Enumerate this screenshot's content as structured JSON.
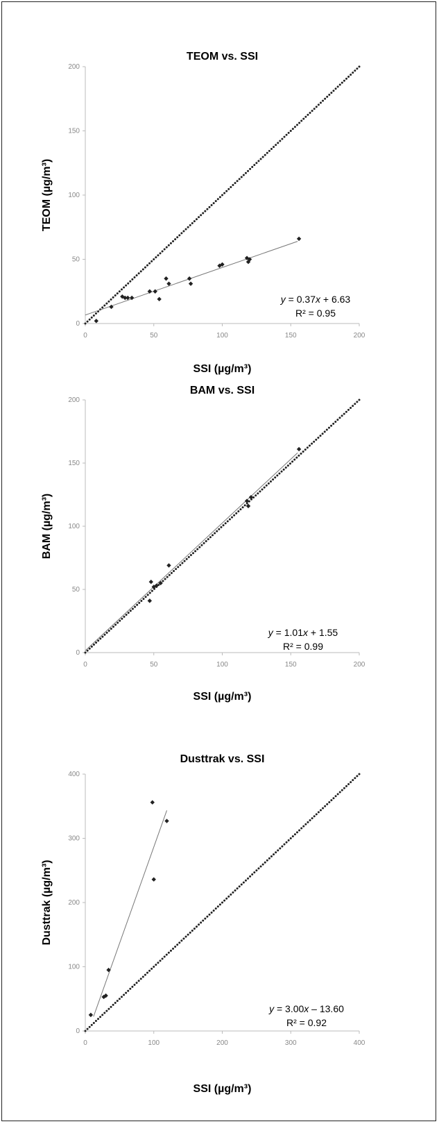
{
  "chart_data": [
    {
      "type": "scatter",
      "title": "TEOM vs. SSI",
      "xlabel": "SSI (µg/m³)",
      "ylabel": "TEOM (µg/m³)",
      "xlim": [
        0,
        200
      ],
      "ylim": [
        0,
        200
      ],
      "xticks": [
        "0",
        "50",
        "100",
        "150",
        "200"
      ],
      "yticks": [
        "0",
        "50",
        "100",
        "150",
        "200"
      ],
      "points": [
        {
          "x": 8,
          "y": 2
        },
        {
          "x": 19,
          "y": 13
        },
        {
          "x": 27,
          "y": 21
        },
        {
          "x": 29,
          "y": 20
        },
        {
          "x": 31,
          "y": 20
        },
        {
          "x": 34,
          "y": 20
        },
        {
          "x": 47,
          "y": 25
        },
        {
          "x": 51,
          "y": 25
        },
        {
          "x": 54,
          "y": 19
        },
        {
          "x": 59,
          "y": 35
        },
        {
          "x": 61,
          "y": 31
        },
        {
          "x": 76,
          "y": 35
        },
        {
          "x": 77,
          "y": 31
        },
        {
          "x": 98,
          "y": 45
        },
        {
          "x": 100,
          "y": 46
        },
        {
          "x": 118,
          "y": 51
        },
        {
          "x": 119,
          "y": 48
        },
        {
          "x": 120,
          "y": 50
        },
        {
          "x": 156,
          "y": 66
        }
      ],
      "fit": {
        "slope": 0.37,
        "intercept": 6.63,
        "x_range": [
          0,
          155
        ]
      },
      "equation": {
        "y_label": "y",
        "rhs_a": " = 0.37",
        "x_label": "x",
        "rhs_b": " + 6.63",
        "r2": "R² = 0.95"
      },
      "identity_line": true
    },
    {
      "type": "scatter",
      "title": "BAM vs. SSI",
      "xlabel": "SSI (µg/m³)",
      "ylabel": "BAM (µg/m³)",
      "xlim": [
        0,
        200
      ],
      "ylim": [
        0,
        200
      ],
      "xticks": [
        "0",
        "50",
        "100",
        "150",
        "200"
      ],
      "yticks": [
        "0",
        "50",
        "100",
        "150",
        "200"
      ],
      "points": [
        {
          "x": 47,
          "y": 41
        },
        {
          "x": 48,
          "y": 56
        },
        {
          "x": 50,
          "y": 52
        },
        {
          "x": 52,
          "y": 53
        },
        {
          "x": 55,
          "y": 55
        },
        {
          "x": 61,
          "y": 69
        },
        {
          "x": 118,
          "y": 120
        },
        {
          "x": 119,
          "y": 116
        },
        {
          "x": 121,
          "y": 123
        },
        {
          "x": 156,
          "y": 161
        }
      ],
      "fit": {
        "slope": 1.01,
        "intercept": 1.55,
        "x_range": [
          0,
          155
        ]
      },
      "equation": {
        "y_label": "y",
        "rhs_a": " = 1.01",
        "x_label": "x",
        "rhs_b": " + 1.55",
        "r2": "R² = 0.99"
      },
      "identity_line": true
    },
    {
      "type": "scatter",
      "title": "Dusttrak vs. SSI",
      "xlabel": "SSI (µg/m³)",
      "ylabel": "Dusttrak (µg/m³)",
      "xlim": [
        0,
        400
      ],
      "ylim": [
        0,
        400
      ],
      "xticks": [
        "0",
        "100",
        "200",
        "300",
        "400"
      ],
      "yticks": [
        "0",
        "100",
        "200",
        "300",
        "400"
      ],
      "points": [
        {
          "x": 8,
          "y": 25
        },
        {
          "x": 27,
          "y": 53
        },
        {
          "x": 30,
          "y": 55
        },
        {
          "x": 34,
          "y": 95
        },
        {
          "x": 98,
          "y": 356
        },
        {
          "x": 100,
          "y": 236
        },
        {
          "x": 119,
          "y": 327
        }
      ],
      "fit": {
        "slope": 3.0,
        "intercept": -13.6,
        "x_range": [
          12,
          119
        ]
      },
      "equation": {
        "y_label": "y",
        "rhs_a": " = 3.00",
        "x_label": "x",
        "rhs_b": " – 13.60",
        "r2": "R² = 0.92"
      },
      "identity_line": true
    }
  ]
}
